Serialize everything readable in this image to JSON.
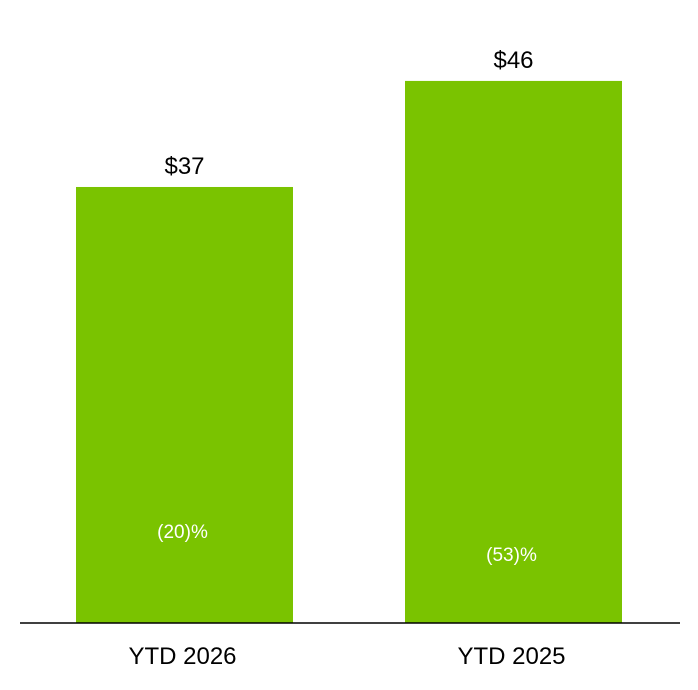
{
  "chart_data": {
    "type": "bar",
    "categories": [
      "YTD 2026",
      "YTD 2025"
    ],
    "values": [
      37,
      46
    ],
    "value_labels": [
      "$37",
      "$46"
    ],
    "inner_labels": [
      "(20)%",
      "(53)%"
    ],
    "ylim": [
      0,
      51
    ],
    "grid": false,
    "legend": "none",
    "colors": {
      "bar": "#7ac300",
      "axis": "#000000",
      "value_text": "#000000",
      "inner_text": "#ffffff"
    }
  }
}
